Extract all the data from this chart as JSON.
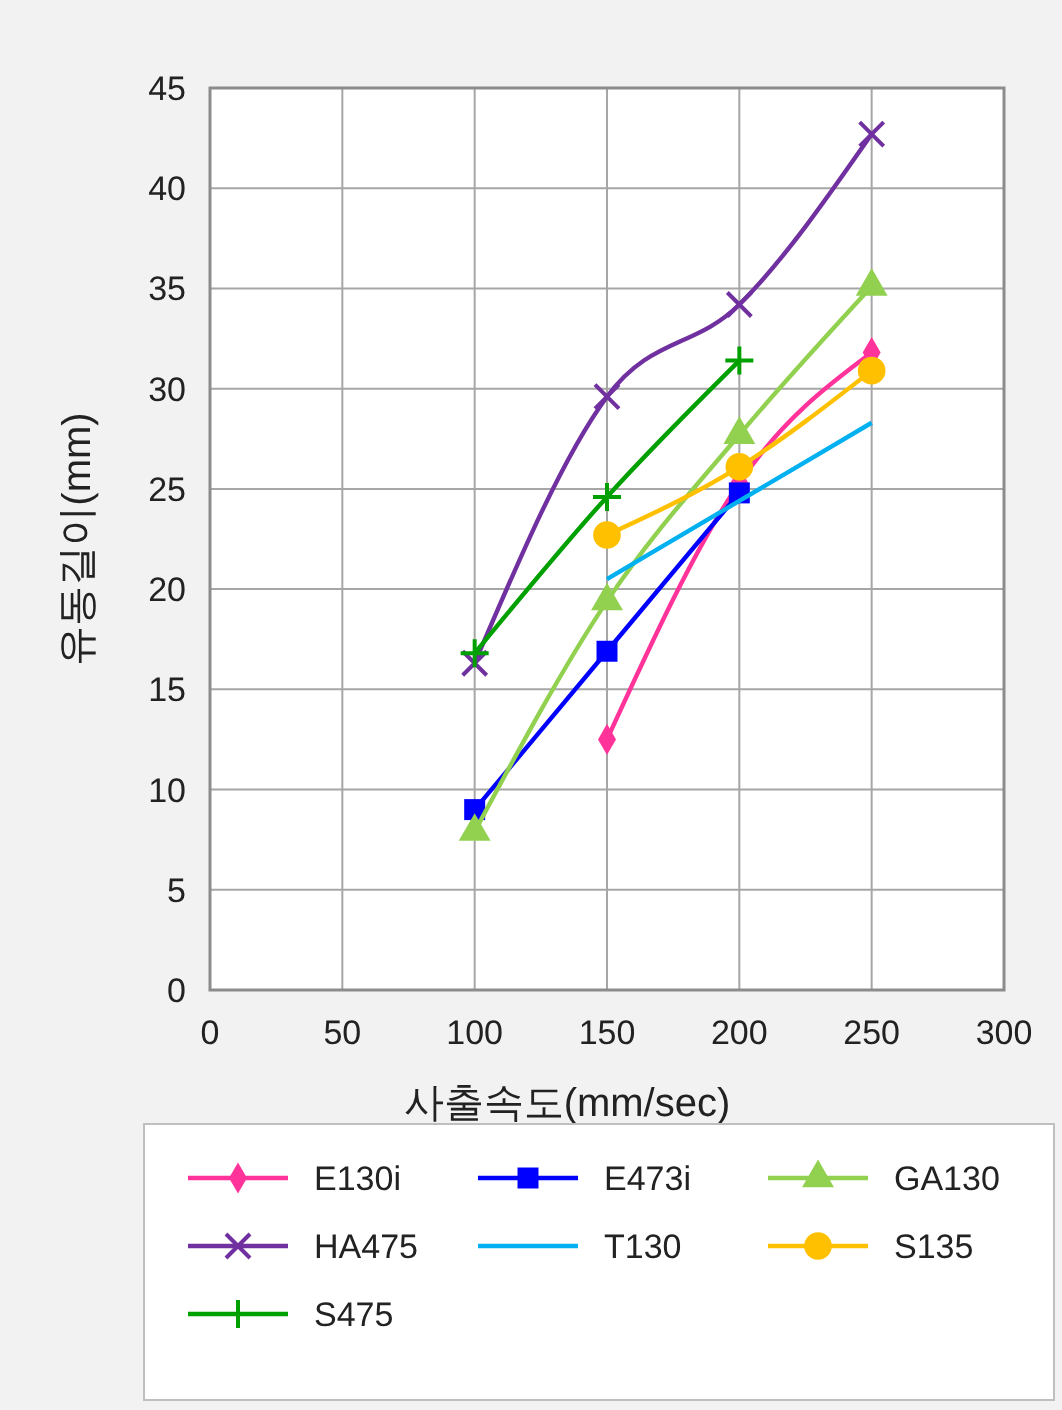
{
  "chart_data": {
    "type": "line",
    "xlabel": "사출속도(mm/sec)",
    "ylabel": "유동길이(mm)",
    "xlim": [
      0,
      300
    ],
    "xticks": [
      0,
      50,
      100,
      150,
      200,
      250,
      300
    ],
    "ylim": [
      0,
      45
    ],
    "yticks": [
      0,
      5,
      10,
      15,
      20,
      25,
      30,
      35,
      40,
      45
    ],
    "grid": true,
    "legend": "bottom",
    "line_style": "solid",
    "series": [
      {
        "name": "E130i",
        "color": "#ff3399",
        "marker": "diamond",
        "x": [
          150,
          200,
          250
        ],
        "values": [
          12.5,
          25.3,
          31.8
        ]
      },
      {
        "name": "E473i",
        "color": "#0000ff",
        "marker": "square",
        "x": [
          100,
          150,
          200
        ],
        "values": [
          9.0,
          16.9,
          24.8
        ]
      },
      {
        "name": "GA130",
        "color": "#92d050",
        "marker": "triangle",
        "x": [
          100,
          150,
          200,
          250
        ],
        "values": [
          7.9,
          19.4,
          27.7,
          35.1
        ]
      },
      {
        "name": "HA475",
        "color": "#7030a0",
        "marker": "x",
        "x": [
          100,
          150,
          200,
          250
        ],
        "values": [
          16.3,
          29.6,
          34.2,
          42.7
        ]
      },
      {
        "name": "T130",
        "color": "#00b0f0",
        "marker": "none",
        "x": [
          150,
          200,
          250
        ],
        "values": [
          20.5,
          24.4,
          28.3
        ]
      },
      {
        "name": "S135",
        "color": "#ffc000",
        "marker": "circle",
        "x": [
          150,
          200,
          250
        ],
        "values": [
          22.7,
          26.1,
          30.9
        ]
      },
      {
        "name": "S475",
        "color": "#00a000",
        "marker": "cross",
        "x": [
          100,
          150,
          200
        ],
        "values": [
          16.8,
          24.6,
          31.4
        ]
      }
    ]
  }
}
